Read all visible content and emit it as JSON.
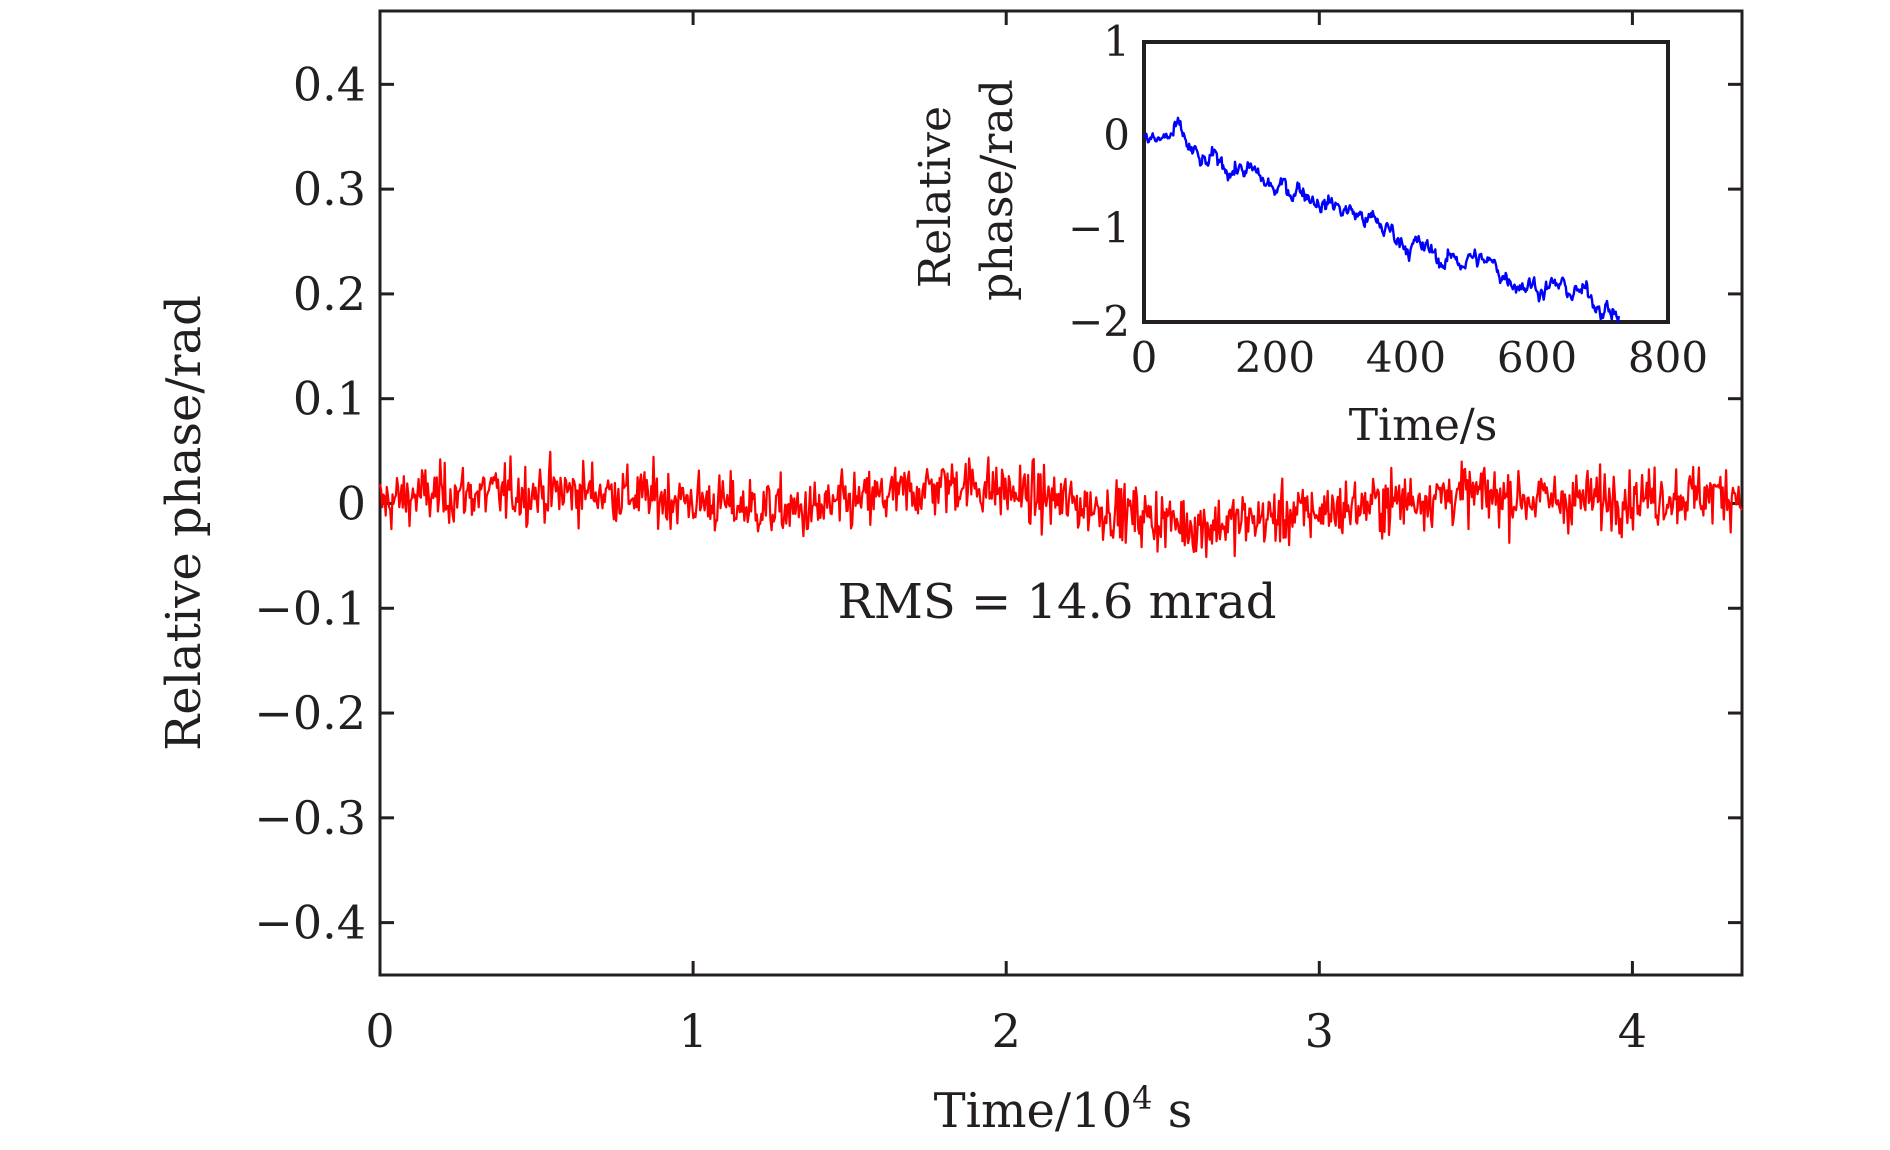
{
  "chart_data": [
    {
      "type": "line",
      "xlabel": "Time/10",
      "xlabel_sup": "4",
      "xlabel_unit": " s",
      "ylabel": "Relative phase/rad",
      "xlim": [
        0,
        4.35
      ],
      "ylim": [
        -0.45,
        0.47
      ],
      "x_ticks": [
        0,
        1,
        2,
        3,
        4
      ],
      "x_tick_labels": [
        "0",
        "1",
        "2",
        "3",
        "4"
      ],
      "y_ticks": [
        0.4,
        0.3,
        0.2,
        0.1,
        0,
        -0.1,
        -0.2,
        -0.3,
        -0.4
      ],
      "y_tick_labels": [
        "0.4",
        "0.3",
        "0.2",
        "0.1",
        "0",
        "−0.1",
        "−0.2",
        "−0.3",
        "−0.4"
      ],
      "grid": false,
      "annotation": "RMS = 14.6 mrad",
      "series": [
        {
          "color": "#ff0000",
          "noise_rms": 0.0146,
          "x_range": [
            0,
            4.35
          ],
          "points": 1200,
          "anchors": [
            [
              0,
              0.0
            ],
            [
              0.12,
              0.008
            ],
            [
              0.68,
              0.012
            ],
            [
              1.35,
              -0.008
            ],
            [
              1.85,
              0.02
            ],
            [
              2.62,
              -0.022
            ],
            [
              3.45,
              0.01
            ],
            [
              3.75,
              0.003
            ],
            [
              4.35,
              0.01
            ]
          ]
        }
      ]
    },
    {
      "type": "line",
      "role": "inset",
      "xlabel": "Time/s",
      "ylabel_line1": "Relative",
      "ylabel_line2": "phase/rad",
      "xlim": [
        0,
        800
      ],
      "ylim": [
        -2,
        1
      ],
      "x_ticks": [
        0,
        200,
        400,
        600,
        800
      ],
      "x_tick_labels": [
        "0",
        "200",
        "400",
        "600",
        "800"
      ],
      "y_ticks": [
        1,
        0,
        -1,
        -2
      ],
      "y_tick_labels": [
        "1",
        "0",
        "−1",
        "−2"
      ],
      "grid": false,
      "series": [
        {
          "color": "#0000ff",
          "x_range": [
            0,
            725
          ],
          "points": 600,
          "anchors": [
            [
              0,
              -0.05
            ],
            [
              20,
              -0.1
            ],
            [
              50,
              0.02
            ],
            [
              90,
              -0.35
            ],
            [
              110,
              -0.3
            ],
            [
              150,
              -0.35
            ],
            [
              180,
              -0.5
            ],
            [
              200,
              -0.6
            ],
            [
              240,
              -0.55
            ],
            [
              280,
              -0.72
            ],
            [
              310,
              -0.8
            ],
            [
              340,
              -0.9
            ],
            [
              380,
              -1.05
            ],
            [
              420,
              -1.2
            ],
            [
              460,
              -1.35
            ],
            [
              500,
              -1.3
            ],
            [
              540,
              -1.45
            ],
            [
              600,
              -1.6
            ],
            [
              640,
              -1.65
            ],
            [
              700,
              -1.78
            ],
            [
              725,
              -1.95
            ]
          ]
        }
      ]
    }
  ]
}
